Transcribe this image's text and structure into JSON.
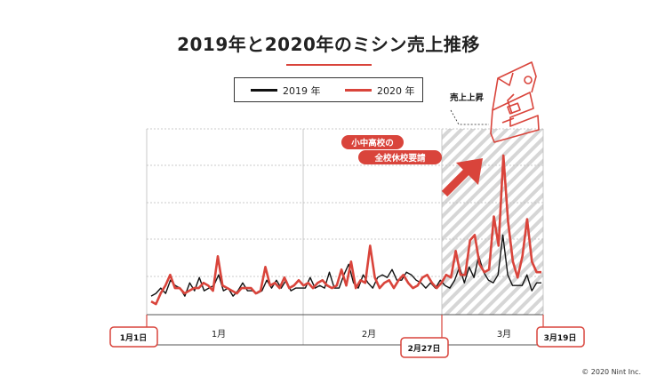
{
  "title": "2019年と2020年のミシン売上推移",
  "legend": {
    "series_2019": "2019 年",
    "series_2020": "2020 年"
  },
  "colors": {
    "series_2019": "#111111",
    "series_2020": "#d9443b",
    "accent": "#d9443b"
  },
  "annotations": {
    "rise_label": "売上上昇",
    "school_closure_line1": "小中高校の",
    "school_closure_line2": "全校休校要請",
    "start_date": "1月1日",
    "closure_date": "2月27日",
    "end_date": "3月19日",
    "icons": [
      "sewing-machine-icon",
      "rising-arrow-icon"
    ]
  },
  "copyright": "© 2020 Nint Inc.",
  "chart_data": {
    "type": "line",
    "title": "2019年と2020年のミシン売上推移",
    "xlabel": "",
    "ylabel": "",
    "x_range": [
      "1月1日",
      "3月19日"
    ],
    "x_tick_labels": [
      "1月",
      "2月",
      "3月"
    ],
    "highlight_from": "2月27日",
    "grid": true,
    "y_ticks_shown": false,
    "ylim": [
      0,
      7
    ],
    "series": [
      {
        "name": "2019 年",
        "color": "#111111",
        "values": [
          0.7,
          0.8,
          1.0,
          0.8,
          1.3,
          1.1,
          1.0,
          0.7,
          1.2,
          0.9,
          1.4,
          0.9,
          1.0,
          1.1,
          1.5,
          0.9,
          1.0,
          0.7,
          0.9,
          1.2,
          0.9,
          0.9,
          0.8,
          0.9,
          1.3,
          1.0,
          1.3,
          1.0,
          1.3,
          0.9,
          1.0,
          1.0,
          1.0,
          1.4,
          1.0,
          1.1,
          1.0,
          1.6,
          1.0,
          1.0,
          1.5,
          1.9,
          1.2,
          1.0,
          1.5,
          1.2,
          1.0,
          1.4,
          1.5,
          1.4,
          1.7,
          1.3,
          1.3,
          1.6,
          1.5,
          1.3,
          1.2,
          1.0,
          1.2,
          1.0,
          1.3,
          1.1,
          1.0,
          1.3,
          1.8,
          1.2,
          1.8,
          1.4,
          2.2,
          1.6,
          1.3,
          1.2,
          1.5,
          3.0,
          1.5,
          1.1,
          1.1,
          1.1,
          1.5,
          0.9,
          1.2,
          1.2
        ]
      },
      {
        "name": "2020 年",
        "color": "#d9443b",
        "values": [
          0.5,
          0.4,
          0.8,
          1.1,
          1.5,
          1.0,
          1.0,
          0.8,
          0.9,
          1.0,
          1.0,
          1.2,
          1.1,
          0.9,
          2.2,
          1.1,
          1.0,
          0.9,
          0.8,
          1.0,
          1.0,
          1.0,
          0.8,
          0.9,
          1.8,
          1.1,
          1.2,
          1.0,
          1.4,
          1.0,
          1.1,
          1.3,
          1.1,
          1.2,
          1.0,
          1.2,
          1.3,
          1.1,
          1.0,
          1.1,
          1.7,
          1.1,
          2.0,
          1.0,
          1.3,
          1.2,
          2.6,
          1.4,
          1.0,
          1.2,
          1.3,
          1.0,
          1.3,
          1.5,
          1.2,
          1.0,
          1.1,
          1.4,
          1.5,
          1.2,
          1.0,
          1.2,
          1.5,
          1.4,
          2.4,
          1.5,
          1.5,
          2.8,
          3.0,
          1.9,
          1.6,
          1.7,
          3.7,
          2.6,
          6.0,
          3.5,
          2.0,
          1.4,
          2.2,
          3.6,
          2.0,
          1.6,
          1.6
        ]
      }
    ]
  }
}
